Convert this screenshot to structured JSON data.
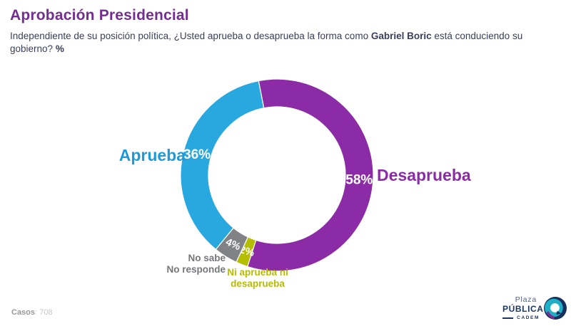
{
  "page": {
    "title": "Aprobación Presidencial",
    "title_color": "#732E91",
    "subtitle": {
      "part1": "Independiente de su posición política, ¿Usted aprueba o desaprueba la forma como ",
      "bold1": "Gabriel Boric",
      "part2": " está conduciendo su gobierno? ",
      "bold2": "%"
    },
    "subtitle_color": "#3B3E5A"
  },
  "chart_data": {
    "type": "pie",
    "variant": "donut",
    "direction": "clockwise",
    "start_angle_deg": -11,
    "inner_radius_ratio": 0.71,
    "slices": [
      {
        "label": "Desaprueba",
        "value": 58,
        "pct_label": "58%",
        "color": "#8B2BA5"
      },
      {
        "label": "Ni aprueba ni desaprueba",
        "value": 2,
        "pct_label": "2%",
        "color": "#B5BD00"
      },
      {
        "label": "No sabe No responde",
        "value": 4,
        "pct_label": "4%",
        "color": "#818285"
      },
      {
        "label": "Aprueba",
        "value": 36,
        "pct_label": "36%",
        "color": "#29A8E0"
      }
    ],
    "value_label_color": "#FFFFFF",
    "legend_position": "callouts"
  },
  "callouts": {
    "aprueba": {
      "text": "Aprueba",
      "color": "#1E9BD7"
    },
    "desaprueba": {
      "text": "Desaprueba",
      "color": "#8B2BA5"
    },
    "no_sabe": {
      "line1": "No sabe",
      "line2": "No responde",
      "color": "#76777A"
    },
    "ni_aprueba": {
      "line1": "Ni aprueba ni",
      "line2": "desaprueba",
      "color": "#B5BD00"
    }
  },
  "footer": {
    "cases_label": "Casos",
    "cases_value": ": 708"
  },
  "logo": {
    "line1": "Plaza",
    "line2": "PÚBLICA",
    "line3": "CADEM",
    "icon": "plaza-publica-cadem-bubble-icon",
    "colors": {
      "navy": "#1C3664",
      "teal": "#1FAEC4",
      "purple": "#7C2D90"
    }
  }
}
